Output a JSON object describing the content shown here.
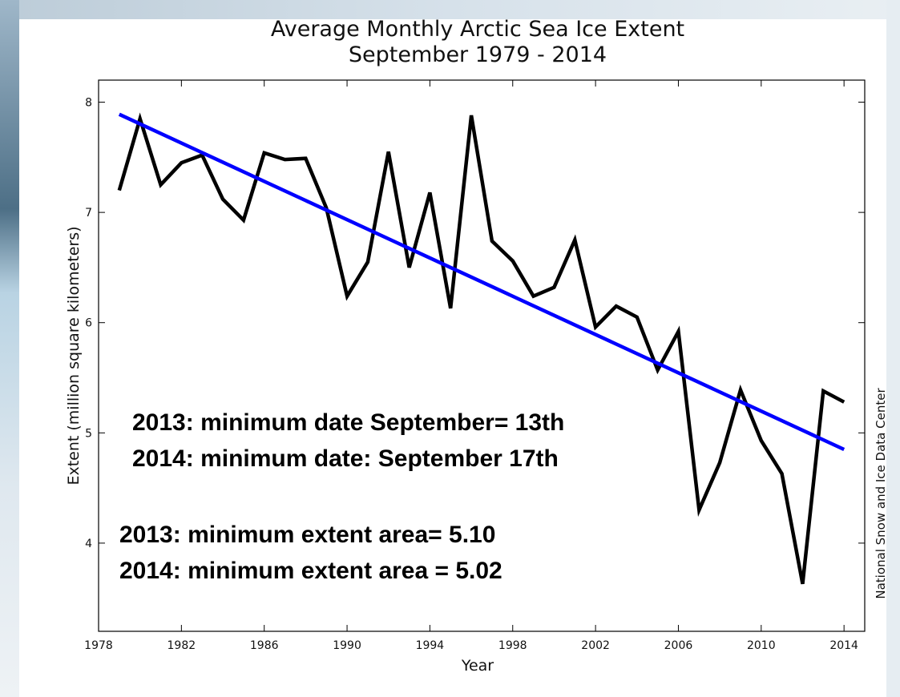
{
  "chart_data": {
    "type": "line",
    "title": "Average Monthly Arctic Sea Ice Extent",
    "subtitle": "September 1979 - 2014",
    "xlabel": "Year",
    "ylabel": "Extent (million square kilometers)",
    "xlim": [
      1978,
      2015
    ],
    "ylim": [
      3.2,
      8.2
    ],
    "x_ticks": [
      "1978",
      "1982",
      "1986",
      "1990",
      "1994",
      "1998",
      "2002",
      "2006",
      "2010",
      "2014"
    ],
    "y_ticks": [
      "4",
      "5",
      "6",
      "7",
      "8"
    ],
    "grid": false,
    "series": [
      {
        "color": "#000000",
        "x": [
          1979,
          1980,
          1981,
          1982,
          1983,
          1984,
          1985,
          1986,
          1987,
          1988,
          1989,
          1990,
          1991,
          1992,
          1993,
          1994,
          1995,
          1996,
          1997,
          1998,
          1999,
          2000,
          2001,
          2002,
          2003,
          2004,
          2005,
          2006,
          2007,
          2008,
          2009,
          2010,
          2011,
          2012,
          2013,
          2014
        ],
        "values": [
          7.2,
          7.85,
          7.25,
          7.45,
          7.52,
          7.12,
          6.93,
          7.54,
          7.48,
          7.49,
          7.04,
          6.24,
          6.55,
          7.55,
          6.5,
          7.18,
          6.13,
          7.88,
          6.74,
          6.56,
          6.24,
          6.32,
          6.75,
          5.96,
          6.15,
          6.05,
          5.57,
          5.92,
          4.3,
          4.73,
          5.39,
          4.93,
          4.63,
          3.63,
          5.38,
          5.28
        ]
      },
      {
        "color": "#0000ff",
        "x": [
          1979,
          2014
        ],
        "values": [
          7.89,
          4.85
        ]
      }
    ],
    "annotations": [
      "2013: minimum date September= 13th",
      "2014: minimum date: September 17th",
      "2013: minimum extent area= 5.10",
      "2014: minimum extent area = 5.02"
    ],
    "source_label": "National Snow and Ice Data Center"
  }
}
